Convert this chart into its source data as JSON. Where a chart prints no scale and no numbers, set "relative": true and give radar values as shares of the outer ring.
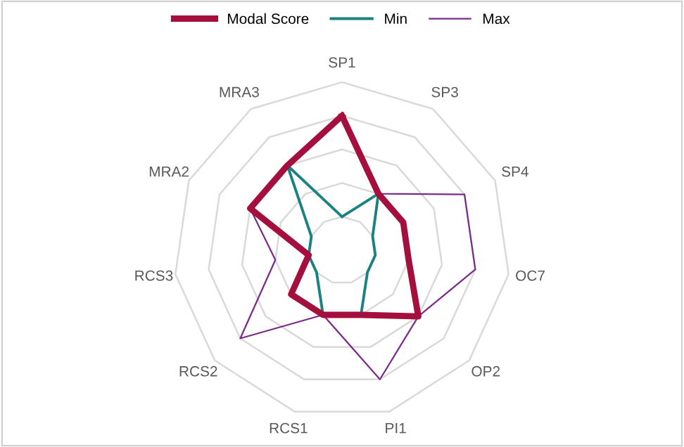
{
  "chart_data": {
    "type": "radar",
    "relative": true,
    "grid": true,
    "legend": "top",
    "marker": "none",
    "categories": [
      "SP1",
      "SP3",
      "SP4",
      "OC7",
      "OP2",
      "PI1",
      "RCS1",
      "RCS2",
      "RCS3",
      "MRA2",
      "MRA3"
    ],
    "series": [
      {
        "name": "Modal Score",
        "color": "#a50f3e",
        "values": [
          0.8,
          0.4,
          0.4,
          0.4,
          0.6,
          0.4,
          0.4,
          0.4,
          0.2,
          0.6,
          0.6
        ]
      },
      {
        "name": "Min",
        "color": "#1b8282",
        "values": [
          0.2,
          0.4,
          0.2,
          0.2,
          0.2,
          0.4,
          0.4,
          0.2,
          0.2,
          0.2,
          0.6
        ]
      },
      {
        "name": "Max",
        "color": "#7a2a8a",
        "values": [
          0.8,
          0.4,
          0.8,
          0.8,
          0.6,
          0.8,
          0.4,
          0.8,
          0.4,
          0.6,
          0.6
        ]
      }
    ]
  }
}
